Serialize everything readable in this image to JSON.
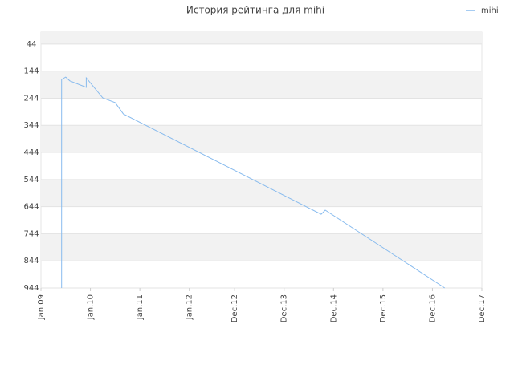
{
  "chart_data": {
    "type": "line",
    "title": "История рейтинга для mihi",
    "x": [
      "2009-06",
      "2009-06",
      "2009-07",
      "2009-08",
      "2009-12",
      "2009-12",
      "2010-04",
      "2010-07",
      "2010-09",
      "2014-09",
      "2014-10",
      "2017-03"
    ],
    "series": [
      {
        "name": "mihi",
        "color": "#88bbee",
        "values": [
          944,
          175,
          166,
          180,
          204,
          169,
          243,
          260,
          302,
          672,
          657,
          944
        ]
      }
    ],
    "xlim": [
      "2009-01",
      "2017-12"
    ],
    "xticks": [
      {
        "value": "2009-01",
        "label": "Jan.09"
      },
      {
        "value": "2010-01",
        "label": "Jan.10"
      },
      {
        "value": "2011-01",
        "label": "Jan.11"
      },
      {
        "value": "2012-01",
        "label": "Jan.12"
      },
      {
        "value": "2012-12",
        "label": "Dec.12"
      },
      {
        "value": "2013-12",
        "label": "Dec.13"
      },
      {
        "value": "2014-12",
        "label": "Dec.14"
      },
      {
        "value": "2015-12",
        "label": "Dec.15"
      },
      {
        "value": "2016-12",
        "label": "Dec.16"
      },
      {
        "value": "2017-12",
        "label": "Dec.17"
      }
    ],
    "ylim": [
      0,
      944
    ],
    "yticks": [
      44,
      144,
      244,
      344,
      444,
      544,
      644,
      744,
      844,
      944
    ],
    "y_inverted": true,
    "grid": true,
    "legend": "top-right"
  }
}
